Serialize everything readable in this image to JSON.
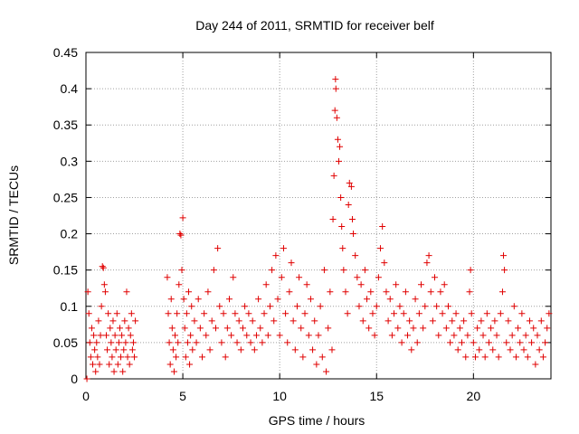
{
  "chart_data": {
    "type": "scatter",
    "title": "Day 244 of 2011, SRMTID for receiver belf",
    "xlabel": "GPS time / hours",
    "ylabel": "SRMTID / TECUs",
    "xlim": [
      0,
      24
    ],
    "ylim": [
      0,
      0.45
    ],
    "xticks": [
      0,
      5,
      10,
      15,
      20
    ],
    "xtick_labels": [
      "0",
      "5",
      "10",
      "15",
      "20"
    ],
    "yticks": [
      0,
      0.05,
      0.1,
      0.15,
      0.2,
      0.25,
      0.3,
      0.35,
      0.4,
      0.45
    ],
    "ytick_labels": [
      "0",
      "0.05",
      "0.1",
      "0.15",
      "0.2",
      "0.25",
      "0.3",
      "0.35",
      "0.4",
      "0.45"
    ],
    "grid": true,
    "marker": "plus",
    "color": "#e00000",
    "series": [
      {
        "name": "SRMTID",
        "points": [
          [
            0.05,
            0.0
          ],
          [
            0.1,
            0.12
          ],
          [
            0.15,
            0.09
          ],
          [
            0.2,
            0.05
          ],
          [
            0.25,
            0.03
          ],
          [
            0.3,
            0.07
          ],
          [
            0.35,
            0.02
          ],
          [
            0.4,
            0.06
          ],
          [
            0.45,
            0.04
          ],
          [
            0.5,
            0.01
          ],
          [
            0.55,
            0.05
          ],
          [
            0.6,
            0.03
          ],
          [
            0.65,
            0.08
          ],
          [
            0.7,
            0.02
          ],
          [
            0.75,
            0.06
          ],
          [
            0.8,
            0.1
          ],
          [
            0.85,
            0.155
          ],
          [
            0.9,
            0.153
          ],
          [
            0.95,
            0.13
          ],
          [
            1.0,
            0.12
          ],
          [
            1.05,
            0.06
          ],
          [
            1.1,
            0.04
          ],
          [
            1.15,
            0.09
          ],
          [
            1.2,
            0.02
          ],
          [
            1.25,
            0.07
          ],
          [
            1.3,
            0.05
          ],
          [
            1.35,
            0.03
          ],
          [
            1.4,
            0.08
          ],
          [
            1.45,
            0.01
          ],
          [
            1.5,
            0.06
          ],
          [
            1.55,
            0.04
          ],
          [
            1.6,
            0.09
          ],
          [
            1.65,
            0.02
          ],
          [
            1.7,
            0.05
          ],
          [
            1.75,
            0.07
          ],
          [
            1.8,
            0.03
          ],
          [
            1.85,
            0.06
          ],
          [
            1.9,
            0.01
          ],
          [
            1.95,
            0.04
          ],
          [
            2.0,
            0.08
          ],
          [
            2.05,
            0.05
          ],
          [
            2.1,
            0.12
          ],
          [
            2.15,
            0.03
          ],
          [
            2.2,
            0.07
          ],
          [
            2.25,
            0.02
          ],
          [
            2.3,
            0.06
          ],
          [
            2.35,
            0.09
          ],
          [
            2.4,
            0.04
          ],
          [
            2.45,
            0.05
          ],
          [
            2.5,
            0.03
          ],
          [
            2.55,
            0.08
          ],
          [
            4.2,
            0.14
          ],
          [
            4.25,
            0.09
          ],
          [
            4.3,
            0.05
          ],
          [
            4.35,
            0.02
          ],
          [
            4.4,
            0.11
          ],
          [
            4.45,
            0.07
          ],
          [
            4.5,
            0.04
          ],
          [
            4.55,
            0.01
          ],
          [
            4.6,
            0.06
          ],
          [
            4.65,
            0.03
          ],
          [
            4.7,
            0.09
          ],
          [
            4.75,
            0.05
          ],
          [
            4.8,
            0.13
          ],
          [
            4.85,
            0.2
          ],
          [
            4.9,
            0.198
          ],
          [
            4.95,
            0.15
          ],
          [
            5.0,
            0.222
          ],
          [
            5.05,
            0.11
          ],
          [
            5.1,
            0.07
          ],
          [
            5.15,
            0.03
          ],
          [
            5.2,
            0.09
          ],
          [
            5.25,
            0.05
          ],
          [
            5.3,
            0.12
          ],
          [
            5.35,
            0.02
          ],
          [
            5.4,
            0.06
          ],
          [
            5.45,
            0.1
          ],
          [
            5.5,
            0.04
          ],
          [
            5.6,
            0.08
          ],
          [
            5.7,
            0.05
          ],
          [
            5.8,
            0.11
          ],
          [
            5.9,
            0.07
          ],
          [
            6.0,
            0.03
          ],
          [
            6.1,
            0.09
          ],
          [
            6.2,
            0.06
          ],
          [
            6.3,
            0.12
          ],
          [
            6.4,
            0.04
          ],
          [
            6.5,
            0.08
          ],
          [
            6.6,
            0.15
          ],
          [
            6.7,
            0.07
          ],
          [
            6.8,
            0.18
          ],
          [
            6.9,
            0.1
          ],
          [
            7.0,
            0.05
          ],
          [
            7.1,
            0.09
          ],
          [
            7.2,
            0.03
          ],
          [
            7.3,
            0.07
          ],
          [
            7.4,
            0.11
          ],
          [
            7.5,
            0.06
          ],
          [
            7.6,
            0.14
          ],
          [
            7.7,
            0.09
          ],
          [
            7.8,
            0.05
          ],
          [
            7.9,
            0.08
          ],
          [
            8.0,
            0.04
          ],
          [
            8.1,
            0.07
          ],
          [
            8.2,
            0.1
          ],
          [
            8.3,
            0.06
          ],
          [
            8.4,
            0.09
          ],
          [
            8.5,
            0.05
          ],
          [
            8.6,
            0.08
          ],
          [
            8.7,
            0.04
          ],
          [
            8.8,
            0.06
          ],
          [
            8.9,
            0.11
          ],
          [
            9.0,
            0.07
          ],
          [
            9.1,
            0.05
          ],
          [
            9.2,
            0.09
          ],
          [
            9.3,
            0.13
          ],
          [
            9.4,
            0.06
          ],
          [
            9.5,
            0.1
          ],
          [
            9.6,
            0.15
          ],
          [
            9.7,
            0.08
          ],
          [
            9.8,
            0.17
          ],
          [
            9.9,
            0.11
          ],
          [
            10.0,
            0.06
          ],
          [
            10.1,
            0.14
          ],
          [
            10.2,
            0.18
          ],
          [
            10.3,
            0.09
          ],
          [
            10.4,
            0.05
          ],
          [
            10.5,
            0.12
          ],
          [
            10.6,
            0.16
          ],
          [
            10.7,
            0.08
          ],
          [
            10.8,
            0.04
          ],
          [
            10.9,
            0.1
          ],
          [
            11.0,
            0.14
          ],
          [
            11.1,
            0.07
          ],
          [
            11.2,
            0.03
          ],
          [
            11.3,
            0.09
          ],
          [
            11.4,
            0.13
          ],
          [
            11.5,
            0.06
          ],
          [
            11.6,
            0.11
          ],
          [
            11.7,
            0.04
          ],
          [
            11.8,
            0.08
          ],
          [
            11.9,
            0.02
          ],
          [
            12.0,
            0.06
          ],
          [
            12.1,
            0.1
          ],
          [
            12.2,
            0.03
          ],
          [
            12.3,
            0.15
          ],
          [
            12.4,
            0.01
          ],
          [
            12.5,
            0.07
          ],
          [
            12.6,
            0.12
          ],
          [
            12.7,
            0.04
          ],
          [
            12.75,
            0.22
          ],
          [
            12.8,
            0.28
          ],
          [
            12.85,
            0.37
          ],
          [
            12.88,
            0.413
          ],
          [
            12.9,
            0.4
          ],
          [
            12.95,
            0.36
          ],
          [
            13.0,
            0.33
          ],
          [
            13.05,
            0.3
          ],
          [
            13.1,
            0.32
          ],
          [
            13.15,
            0.25
          ],
          [
            13.2,
            0.21
          ],
          [
            13.25,
            0.18
          ],
          [
            13.3,
            0.15
          ],
          [
            13.4,
            0.12
          ],
          [
            13.5,
            0.09
          ],
          [
            13.55,
            0.24
          ],
          [
            13.6,
            0.27
          ],
          [
            13.7,
            0.265
          ],
          [
            13.75,
            0.22
          ],
          [
            13.8,
            0.2
          ],
          [
            13.9,
            0.17
          ],
          [
            14.0,
            0.14
          ],
          [
            14.1,
            0.1
          ],
          [
            14.2,
            0.13
          ],
          [
            14.3,
            0.08
          ],
          [
            14.4,
            0.15
          ],
          [
            14.5,
            0.11
          ],
          [
            14.6,
            0.07
          ],
          [
            14.7,
            0.12
          ],
          [
            14.8,
            0.09
          ],
          [
            14.9,
            0.06
          ],
          [
            15.0,
            0.1
          ],
          [
            15.1,
            0.14
          ],
          [
            15.2,
            0.18
          ],
          [
            15.3,
            0.21
          ],
          [
            15.4,
            0.16
          ],
          [
            15.5,
            0.12
          ],
          [
            15.6,
            0.08
          ],
          [
            15.7,
            0.11
          ],
          [
            15.8,
            0.06
          ],
          [
            15.9,
            0.09
          ],
          [
            16.0,
            0.13
          ],
          [
            16.1,
            0.07
          ],
          [
            16.2,
            0.1
          ],
          [
            16.3,
            0.05
          ],
          [
            16.4,
            0.09
          ],
          [
            16.5,
            0.12
          ],
          [
            16.6,
            0.06
          ],
          [
            16.7,
            0.08
          ],
          [
            16.8,
            0.04
          ],
          [
            16.9,
            0.07
          ],
          [
            17.0,
            0.11
          ],
          [
            17.1,
            0.05
          ],
          [
            17.2,
            0.09
          ],
          [
            17.3,
            0.13
          ],
          [
            17.4,
            0.07
          ],
          [
            17.5,
            0.1
          ],
          [
            17.6,
            0.16
          ],
          [
            17.7,
            0.17
          ],
          [
            17.8,
            0.12
          ],
          [
            17.9,
            0.08
          ],
          [
            18.0,
            0.14
          ],
          [
            18.1,
            0.1
          ],
          [
            18.2,
            0.06
          ],
          [
            18.3,
            0.12
          ],
          [
            18.4,
            0.09
          ],
          [
            18.5,
            0.13
          ],
          [
            18.6,
            0.07
          ],
          [
            18.7,
            0.1
          ],
          [
            18.8,
            0.05
          ],
          [
            18.9,
            0.08
          ],
          [
            19.0,
            0.06
          ],
          [
            19.1,
            0.09
          ],
          [
            19.2,
            0.04
          ],
          [
            19.3,
            0.07
          ],
          [
            19.4,
            0.05
          ],
          [
            19.5,
            0.08
          ],
          [
            19.6,
            0.03
          ],
          [
            19.7,
            0.06
          ],
          [
            19.8,
            0.12
          ],
          [
            19.85,
            0.15
          ],
          [
            19.9,
            0.09
          ],
          [
            20.0,
            0.05
          ],
          [
            20.1,
            0.03
          ],
          [
            20.2,
            0.07
          ],
          [
            20.3,
            0.04
          ],
          [
            20.4,
            0.08
          ],
          [
            20.5,
            0.06
          ],
          [
            20.6,
            0.03
          ],
          [
            20.7,
            0.09
          ],
          [
            20.8,
            0.05
          ],
          [
            20.9,
            0.07
          ],
          [
            21.0,
            0.04
          ],
          [
            21.1,
            0.08
          ],
          [
            21.2,
            0.06
          ],
          [
            21.3,
            0.03
          ],
          [
            21.4,
            0.09
          ],
          [
            21.5,
            0.12
          ],
          [
            21.55,
            0.17
          ],
          [
            21.6,
            0.15
          ],
          [
            21.7,
            0.05
          ],
          [
            21.8,
            0.08
          ],
          [
            21.9,
            0.04
          ],
          [
            22.0,
            0.06
          ],
          [
            22.1,
            0.1
          ],
          [
            22.2,
            0.03
          ],
          [
            22.3,
            0.07
          ],
          [
            22.4,
            0.05
          ],
          [
            22.5,
            0.09
          ],
          [
            22.6,
            0.04
          ],
          [
            22.7,
            0.06
          ],
          [
            22.8,
            0.03
          ],
          [
            22.9,
            0.08
          ],
          [
            23.0,
            0.05
          ],
          [
            23.1,
            0.07
          ],
          [
            23.2,
            0.02
          ],
          [
            23.3,
            0.06
          ],
          [
            23.4,
            0.04
          ],
          [
            23.5,
            0.08
          ],
          [
            23.6,
            0.03
          ],
          [
            23.7,
            0.05
          ],
          [
            23.8,
            0.07
          ],
          [
            23.9,
            0.09
          ]
        ]
      }
    ]
  }
}
